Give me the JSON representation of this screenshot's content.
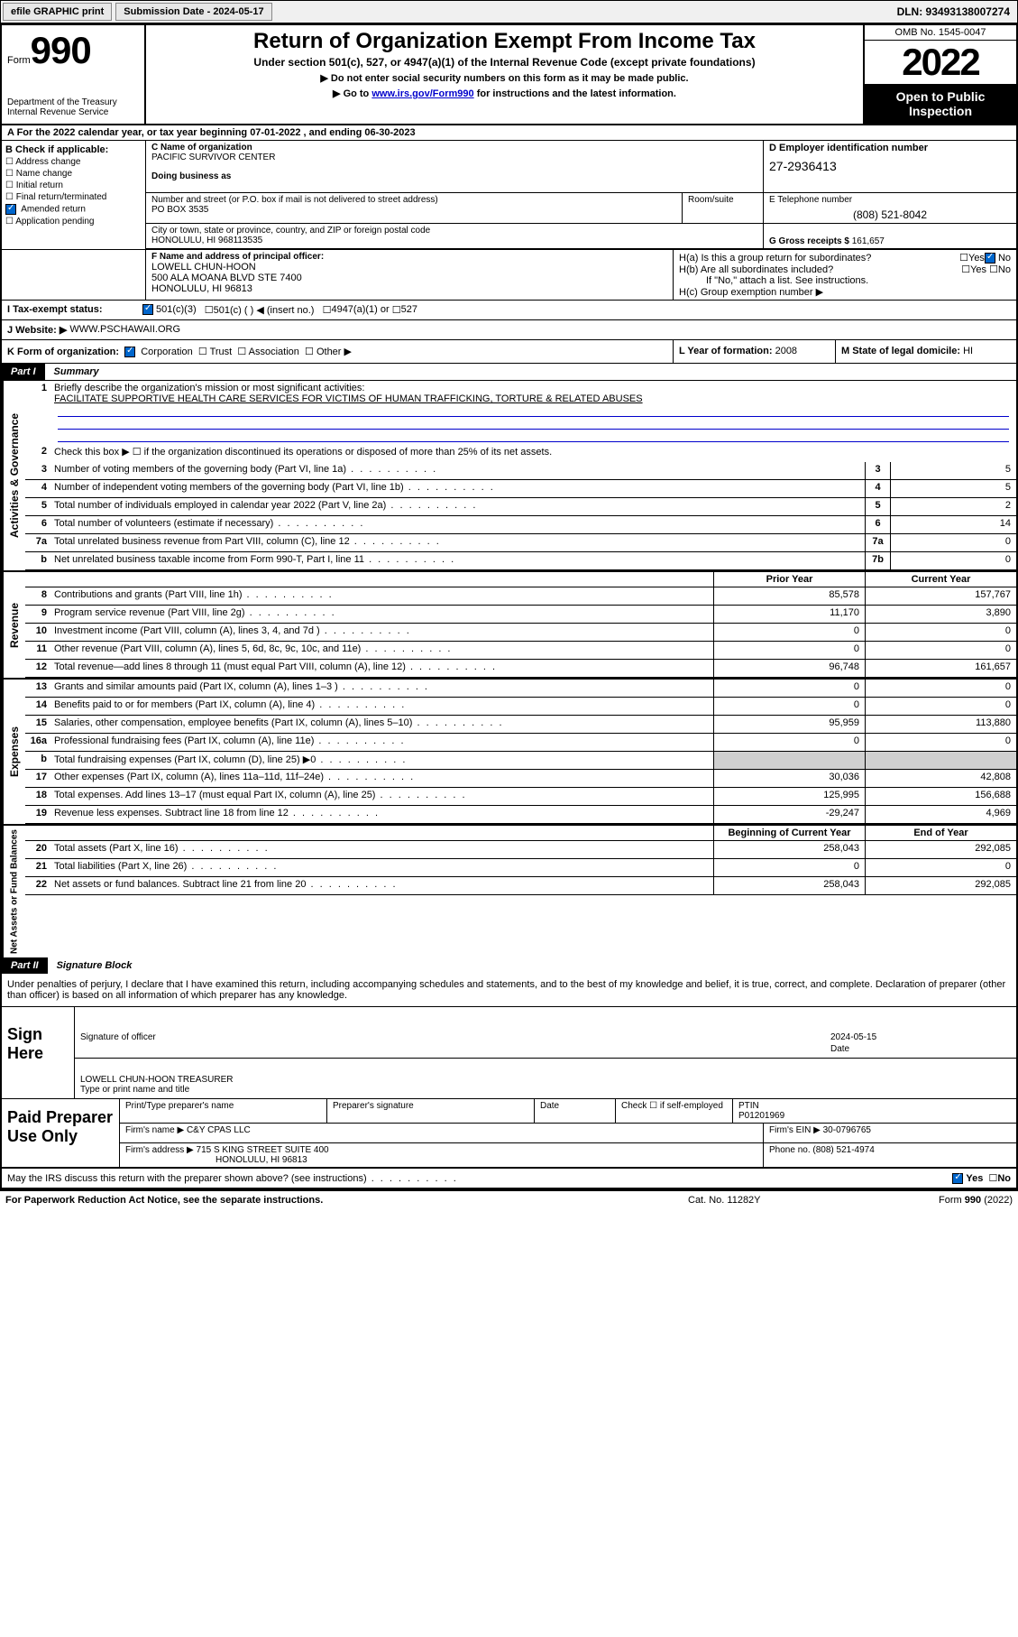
{
  "topbar": {
    "efile": "efile GRAPHIC print",
    "sub_label": "Submission Date - 2024-05-17",
    "dln": "DLN: 93493138007274"
  },
  "header": {
    "form_word": "Form",
    "form_num": "990",
    "dept": "Department of the Treasury\nInternal Revenue Service",
    "title": "Return of Organization Exempt From Income Tax",
    "sub1": "Under section 501(c), 527, or 4947(a)(1) of the Internal Revenue Code (except private foundations)",
    "sub2a": "▶ Do not enter social security numbers on this form as it may be made public.",
    "sub2b_pre": "▶ Go to ",
    "sub2b_link": "www.irs.gov/Form990",
    "sub2b_post": " for instructions and the latest information.",
    "omb": "OMB No. 1545-0047",
    "year": "2022",
    "open": "Open to Public Inspection"
  },
  "rowA": {
    "text": "A For the 2022 calendar year, or tax year beginning 07-01-2022    , and ending 06-30-2023"
  },
  "colB": {
    "hdr": "B Check if applicable:",
    "opts": [
      "Address change",
      "Name change",
      "Initial return",
      "Final return/terminated",
      "Amended return",
      "Application pending"
    ],
    "checked_idx": 4
  },
  "colC": {
    "name_lbl": "C Name of organization",
    "name": "PACIFIC SURVIVOR CENTER",
    "dba_lbl": "Doing business as",
    "addr_lbl": "Number and street (or P.O. box if mail is not delivered to street address)",
    "addr": "PO BOX 3535",
    "room_lbl": "Room/suite",
    "city_lbl": "City or town, state or province, country, and ZIP or foreign postal code",
    "city": "HONOLULU, HI  968113535"
  },
  "colD": {
    "ein_lbl": "D Employer identification number",
    "ein": "27-2936413",
    "tel_lbl": "E Telephone number",
    "tel": "(808) 521-8042",
    "gross_lbl": "G Gross receipts $",
    "gross": "161,657"
  },
  "rowF": {
    "lbl": "F Name and address of principal officer:",
    "name": "LOWELL CHUN-HOON",
    "addr1": "500 ALA MOANA BLVD STE 7400",
    "addr2": "HONOLULU, HI  96813"
  },
  "rowH": {
    "ha": "H(a)  Is this a group return for subordinates?",
    "hb": "H(b)  Are all subordinates included?",
    "hb_note": "If \"No,\" attach a list. See instructions.",
    "hc": "H(c)  Group exemption number ▶"
  },
  "rowI": {
    "lbl": "I   Tax-exempt status:",
    "opt1": "501(c)(3)",
    "opt2": "501(c) (   ) ◀ (insert no.)",
    "opt3": "4947(a)(1) or",
    "opt4": "527"
  },
  "rowJ": {
    "lbl": "J   Website: ▶",
    "val": "WWW.PSCHAWAII.ORG"
  },
  "rowK": {
    "lbl": "K Form of organization:",
    "opts": [
      "Corporation",
      "Trust",
      "Association",
      "Other ▶"
    ]
  },
  "rowL": {
    "lbl": "L Year of formation:",
    "val": "2008"
  },
  "rowM": {
    "lbl": "M State of legal domicile:",
    "val": "HI"
  },
  "part1": {
    "num": "Part I",
    "title": "Summary"
  },
  "summary": {
    "gov_label": "Activities & Governance",
    "rev_label": "Revenue",
    "exp_label": "Expenses",
    "net_label": "Net Assets or Fund Balances",
    "line1_lbl": "Briefly describe the organization's mission or most significant activities:",
    "line1_val": "FACILITATE SUPPORTIVE HEALTH CARE SERVICES FOR VICTIMS OF HUMAN TRAFFICKING, TORTURE & RELATED ABUSES",
    "line2": "Check this box ▶ ☐  if the organization discontinued its operations or disposed of more than 25% of its net assets.",
    "lines_gov": [
      {
        "n": "3",
        "d": "Number of voting members of the governing body (Part VI, line 1a)",
        "b": "3",
        "v": "5"
      },
      {
        "n": "4",
        "d": "Number of independent voting members of the governing body (Part VI, line 1b)",
        "b": "4",
        "v": "5"
      },
      {
        "n": "5",
        "d": "Total number of individuals employed in calendar year 2022 (Part V, line 2a)",
        "b": "5",
        "v": "2"
      },
      {
        "n": "6",
        "d": "Total number of volunteers (estimate if necessary)",
        "b": "6",
        "v": "14"
      },
      {
        "n": "7a",
        "d": "Total unrelated business revenue from Part VIII, column (C), line 12",
        "b": "7a",
        "v": "0"
      },
      {
        "n": "b",
        "d": "Net unrelated business taxable income from Form 990-T, Part I, line 11",
        "b": "7b",
        "v": "0"
      }
    ],
    "prior_hdr": "Prior Year",
    "curr_hdr": "Current Year",
    "lines_rev": [
      {
        "n": "8",
        "d": "Contributions and grants (Part VIII, line 1h)",
        "p": "85,578",
        "c": "157,767"
      },
      {
        "n": "9",
        "d": "Program service revenue (Part VIII, line 2g)",
        "p": "11,170",
        "c": "3,890"
      },
      {
        "n": "10",
        "d": "Investment income (Part VIII, column (A), lines 3, 4, and 7d )",
        "p": "0",
        "c": "0"
      },
      {
        "n": "11",
        "d": "Other revenue (Part VIII, column (A), lines 5, 6d, 8c, 9c, 10c, and 11e)",
        "p": "0",
        "c": "0"
      },
      {
        "n": "12",
        "d": "Total revenue—add lines 8 through 11 (must equal Part VIII, column (A), line 12)",
        "p": "96,748",
        "c": "161,657"
      }
    ],
    "lines_exp": [
      {
        "n": "13",
        "d": "Grants and similar amounts paid (Part IX, column (A), lines 1–3 )",
        "p": "0",
        "c": "0"
      },
      {
        "n": "14",
        "d": "Benefits paid to or for members (Part IX, column (A), line 4)",
        "p": "0",
        "c": "0"
      },
      {
        "n": "15",
        "d": "Salaries, other compensation, employee benefits (Part IX, column (A), lines 5–10)",
        "p": "95,959",
        "c": "113,880"
      },
      {
        "n": "16a",
        "d": "Professional fundraising fees (Part IX, column (A), line 11e)",
        "p": "0",
        "c": "0"
      },
      {
        "n": "b",
        "d": "Total fundraising expenses (Part IX, column (D), line 25) ▶0",
        "p": "",
        "c": "",
        "gray": true
      },
      {
        "n": "17",
        "d": "Other expenses (Part IX, column (A), lines 11a–11d, 11f–24e)",
        "p": "30,036",
        "c": "42,808"
      },
      {
        "n": "18",
        "d": "Total expenses. Add lines 13–17 (must equal Part IX, column (A), line 25)",
        "p": "125,995",
        "c": "156,688"
      },
      {
        "n": "19",
        "d": "Revenue less expenses. Subtract line 18 from line 12",
        "p": "-29,247",
        "c": "4,969"
      }
    ],
    "beg_hdr": "Beginning of Current Year",
    "end_hdr": "End of Year",
    "lines_net": [
      {
        "n": "20",
        "d": "Total assets (Part X, line 16)",
        "p": "258,043",
        "c": "292,085"
      },
      {
        "n": "21",
        "d": "Total liabilities (Part X, line 26)",
        "p": "0",
        "c": "0"
      },
      {
        "n": "22",
        "d": "Net assets or fund balances. Subtract line 21 from line 20",
        "p": "258,043",
        "c": "292,085"
      }
    ]
  },
  "part2": {
    "num": "Part II",
    "title": "Signature Block"
  },
  "sig": {
    "decl": "Under penalties of perjury, I declare that I have examined this return, including accompanying schedules and statements, and to the best of my knowledge and belief, it is true, correct, and complete. Declaration of preparer (other than officer) is based on all information of which preparer has any knowledge.",
    "here": "Sign Here",
    "sig_officer": "Signature of officer",
    "date": "2024-05-15",
    "date_lbl": "Date",
    "name_title": "LOWELL CHUN-HOON  TREASURER",
    "name_lbl": "Type or print name and title"
  },
  "prep": {
    "label": "Paid Preparer Use Only",
    "r1": {
      "c1": "Print/Type preparer's name",
      "c2": "Preparer's signature",
      "c3": "Date",
      "c4": "Check ☐ if self-employed",
      "c5_lbl": "PTIN",
      "c5": "P01201969"
    },
    "r2": {
      "lbl": "Firm's name    ▶",
      "val": "C&Y CPAS LLC",
      "ein_lbl": "Firm's EIN ▶",
      "ein": "30-0796765"
    },
    "r3": {
      "lbl": "Firm's address ▶",
      "val1": "715 S KING STREET SUITE 400",
      "val2": "HONOLULU, HI  96813",
      "ph_lbl": "Phone no.",
      "ph": "(808) 521-4974"
    }
  },
  "discuss": {
    "text": "May the IRS discuss this return with the preparer shown above? (see instructions)",
    "yes": "Yes",
    "no": "No"
  },
  "footer": {
    "l": "For Paperwork Reduction Act Notice, see the separate instructions.",
    "c": "Cat. No. 11282Y",
    "r": "Form 990 (2022)"
  }
}
